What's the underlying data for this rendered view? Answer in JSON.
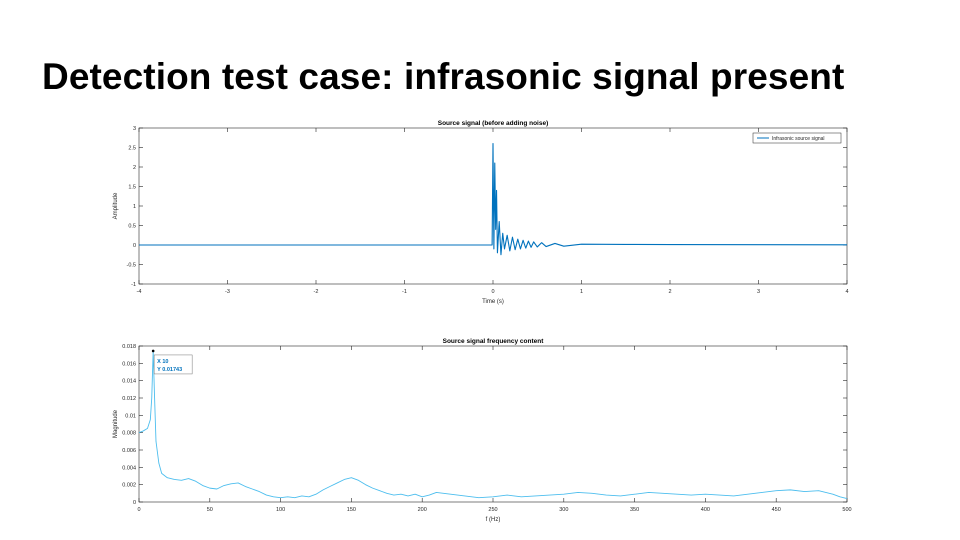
{
  "slide": {
    "title": "Detection test case: infrasonic signal present"
  },
  "colors": {
    "series": "#0072BD",
    "spectrum": "#4DBEEE",
    "axis": "#262626",
    "grid_tick": "#262626",
    "datatip": "#0072BD"
  },
  "chart_data": [
    {
      "type": "line",
      "title": "Source signal (before adding noise)",
      "xlabel": "Time (s)",
      "ylabel": "Amplitude",
      "xlim": [
        -4,
        4
      ],
      "ylim": [
        -1,
        3
      ],
      "xticks": [
        -4,
        -3,
        -2,
        -1,
        0,
        1,
        2,
        3,
        4
      ],
      "yticks": [
        -1,
        -0.5,
        0,
        0.5,
        1,
        1.5,
        2,
        2.5,
        3
      ],
      "legend": {
        "position": "top-right",
        "entries": [
          "Infrasonic source signal"
        ]
      },
      "series": [
        {
          "name": "Infrasonic source signal",
          "description_points": [
            [
              -4,
              0
            ],
            [
              -0.01,
              0
            ],
            [
              0,
              2.6
            ],
            [
              0.01,
              -0.1
            ],
            [
              0.02,
              2.1
            ],
            [
              0.03,
              0.4
            ],
            [
              0.04,
              1.4
            ],
            [
              0.05,
              -0.2
            ],
            [
              0.07,
              0.6
            ],
            [
              0.09,
              -0.25
            ],
            [
              0.11,
              0.3
            ],
            [
              0.13,
              -0.1
            ],
            [
              0.16,
              0.25
            ],
            [
              0.19,
              -0.15
            ],
            [
              0.22,
              0.2
            ],
            [
              0.25,
              -0.12
            ],
            [
              0.28,
              0.15
            ],
            [
              0.31,
              -0.1
            ],
            [
              0.34,
              0.12
            ],
            [
              0.37,
              -0.08
            ],
            [
              0.4,
              0.1
            ],
            [
              0.43,
              -0.06
            ],
            [
              0.46,
              0.08
            ],
            [
              0.5,
              -0.05
            ],
            [
              0.55,
              0.06
            ],
            [
              0.6,
              -0.04
            ],
            [
              0.7,
              0.04
            ],
            [
              0.8,
              -0.03
            ],
            [
              1.0,
              0.02
            ],
            [
              1.5,
              0.015
            ],
            [
              2,
              0.01
            ],
            [
              3,
              0.008
            ],
            [
              4,
              0.005
            ]
          ]
        }
      ]
    },
    {
      "type": "line",
      "title": "Source signal frequency content",
      "xlabel": "f (Hz)",
      "ylabel": "Magnitude",
      "xlim": [
        0,
        500
      ],
      "ylim": [
        0,
        0.018
      ],
      "xticks": [
        0,
        50,
        100,
        150,
        200,
        250,
        300,
        350,
        400,
        450,
        500
      ],
      "yticks": [
        0,
        0.002,
        0.004,
        0.006,
        0.008,
        0.01,
        0.012,
        0.014,
        0.016,
        0.018
      ],
      "datatip": {
        "x_label": "X 10",
        "y_label": "Y 0.01743",
        "x": 10,
        "y": 0.01743
      },
      "series": [
        {
          "name": "",
          "points": [
            [
              0,
              0.008
            ],
            [
              3,
              0.0082
            ],
            [
              6,
              0.0085
            ],
            [
              8,
              0.0095
            ],
            [
              9,
              0.012
            ],
            [
              10,
              0.01743
            ],
            [
              11,
              0.012
            ],
            [
              12,
              0.007
            ],
            [
              14,
              0.0045
            ],
            [
              16,
              0.0033
            ],
            [
              20,
              0.0028
            ],
            [
              25,
              0.0026
            ],
            [
              30,
              0.0025
            ],
            [
              35,
              0.0027
            ],
            [
              40,
              0.0024
            ],
            [
              45,
              0.0019
            ],
            [
              50,
              0.0016
            ],
            [
              55,
              0.0015
            ],
            [
              60,
              0.0019
            ],
            [
              65,
              0.0021
            ],
            [
              70,
              0.0022
            ],
            [
              75,
              0.0018
            ],
            [
              80,
              0.0015
            ],
            [
              85,
              0.0012
            ],
            [
              90,
              0.0008
            ],
            [
              95,
              0.0006
            ],
            [
              100,
              0.0005
            ],
            [
              105,
              0.0006
            ],
            [
              110,
              0.0005
            ],
            [
              115,
              0.0007
            ],
            [
              120,
              0.0006
            ],
            [
              125,
              0.0009
            ],
            [
              130,
              0.0014
            ],
            [
              135,
              0.0018
            ],
            [
              140,
              0.0022
            ],
            [
              145,
              0.0026
            ],
            [
              150,
              0.0028
            ],
            [
              155,
              0.0025
            ],
            [
              160,
              0.002
            ],
            [
              165,
              0.0016
            ],
            [
              170,
              0.0013
            ],
            [
              175,
              0.001
            ],
            [
              180,
              0.0008
            ],
            [
              185,
              0.0009
            ],
            [
              190,
              0.0007
            ],
            [
              195,
              0.0009
            ],
            [
              200,
              0.0006
            ],
            [
              205,
              0.0008
            ],
            [
              210,
              0.0011
            ],
            [
              215,
              0.001
            ],
            [
              220,
              0.0009
            ],
            [
              230,
              0.0007
            ],
            [
              240,
              0.0005
            ],
            [
              250,
              0.0006
            ],
            [
              260,
              0.0008
            ],
            [
              270,
              0.0006
            ],
            [
              280,
              0.0007
            ],
            [
              290,
              0.0008
            ],
            [
              300,
              0.0009
            ],
            [
              310,
              0.0011
            ],
            [
              320,
              0.001
            ],
            [
              330,
              0.0008
            ],
            [
              340,
              0.0007
            ],
            [
              350,
              0.0009
            ],
            [
              360,
              0.0011
            ],
            [
              370,
              0.001
            ],
            [
              380,
              0.0009
            ],
            [
              390,
              0.0008
            ],
            [
              400,
              0.0009
            ],
            [
              410,
              0.0008
            ],
            [
              420,
              0.0007
            ],
            [
              430,
              0.0009
            ],
            [
              440,
              0.0011
            ],
            [
              450,
              0.0013
            ],
            [
              460,
              0.0014
            ],
            [
              470,
              0.0012
            ],
            [
              480,
              0.0013
            ],
            [
              490,
              0.0009
            ],
            [
              495,
              0.0006
            ],
            [
              500,
              0.0004
            ]
          ]
        }
      ]
    }
  ]
}
